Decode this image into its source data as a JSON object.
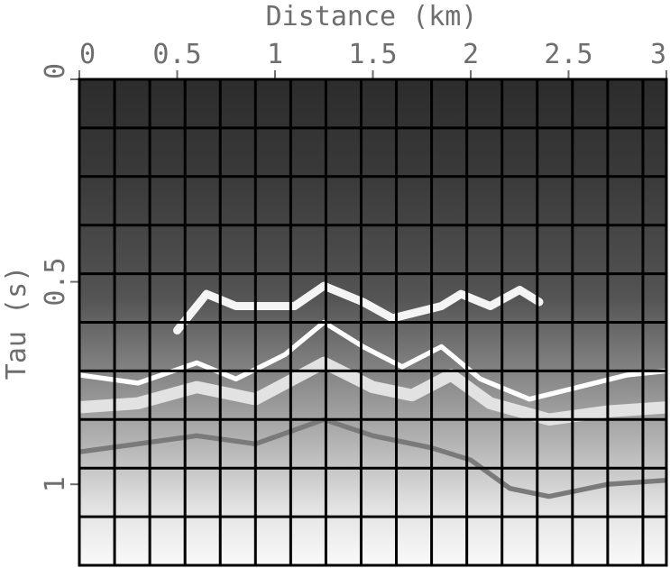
{
  "chart_data": {
    "type": "heatmap",
    "title": "",
    "xlabel": "Distance (km)",
    "ylabel": "Tau (s)",
    "x_axis_position": "top",
    "xlim": [
      0,
      3
    ],
    "ylim": [
      0,
      1.2
    ],
    "y_inverted": true,
    "x_ticks": [
      0,
      0.5,
      1,
      1.5,
      2,
      2.5,
      3
    ],
    "x_tick_labels": [
      "0",
      "0.5",
      "1",
      "1.5",
      "2",
      "2.5",
      "3"
    ],
    "y_ticks": [
      0,
      0.5,
      1
    ],
    "y_tick_labels": [
      "0",
      "0.5",
      "1"
    ],
    "colormap": "grayscale",
    "grid": true,
    "grid_x_positions": [
      0.18,
      0.36,
      0.54,
      0.72,
      0.9,
      1.08,
      1.26,
      1.44,
      1.62,
      1.8,
      1.98,
      2.16,
      2.34,
      2.52,
      2.7,
      2.88
    ],
    "grid_y_positions": [
      0.12,
      0.24,
      0.36,
      0.48,
      0.6,
      0.72,
      0.84,
      0.96,
      1.08
    ],
    "reflectors": [
      {
        "points": [
          [
            0,
            0.73
          ],
          [
            0.3,
            0.75
          ],
          [
            0.6,
            0.7
          ],
          [
            0.8,
            0.74
          ],
          [
            1.05,
            0.68
          ],
          [
            1.25,
            0.6
          ],
          [
            1.45,
            0.66
          ],
          [
            1.65,
            0.71
          ],
          [
            1.85,
            0.66
          ],
          [
            2.05,
            0.74
          ],
          [
            2.3,
            0.79
          ],
          [
            2.55,
            0.76
          ],
          [
            2.8,
            0.73
          ],
          [
            3,
            0.72
          ]
        ],
        "tone": "#ffffff",
        "width": 0.012
      },
      {
        "points": [
          [
            0.5,
            0.62
          ],
          [
            0.65,
            0.53
          ],
          [
            0.8,
            0.56
          ],
          [
            1.1,
            0.56
          ],
          [
            1.25,
            0.51
          ],
          [
            1.45,
            0.55
          ],
          [
            1.6,
            0.59
          ],
          [
            1.85,
            0.56
          ],
          [
            1.95,
            0.53
          ],
          [
            2.1,
            0.56
          ],
          [
            2.25,
            0.52
          ],
          [
            2.35,
            0.55
          ]
        ],
        "tone": "#f4f4f4",
        "width": 0.02
      },
      {
        "points": [
          [
            0,
            0.81
          ],
          [
            0.3,
            0.8
          ],
          [
            0.6,
            0.76
          ],
          [
            0.9,
            0.79
          ],
          [
            1.25,
            0.7
          ],
          [
            1.5,
            0.76
          ],
          [
            1.7,
            0.78
          ],
          [
            1.9,
            0.73
          ],
          [
            2.1,
            0.8
          ],
          [
            2.4,
            0.84
          ],
          [
            2.7,
            0.82
          ],
          [
            3,
            0.81
          ]
        ],
        "tone": "#e2e2e2",
        "width": 0.03
      },
      {
        "points": [
          [
            0,
            0.92
          ],
          [
            0.3,
            0.9
          ],
          [
            0.6,
            0.88
          ],
          [
            0.9,
            0.9
          ],
          [
            1.25,
            0.84
          ],
          [
            1.5,
            0.88
          ],
          [
            1.8,
            0.91
          ],
          [
            2.0,
            0.94
          ],
          [
            2.2,
            1.01
          ],
          [
            2.4,
            1.03
          ],
          [
            2.7,
            1.0
          ],
          [
            3,
            0.99
          ]
        ],
        "tone": "#7a7a7a",
        "width": 0.012
      }
    ]
  }
}
